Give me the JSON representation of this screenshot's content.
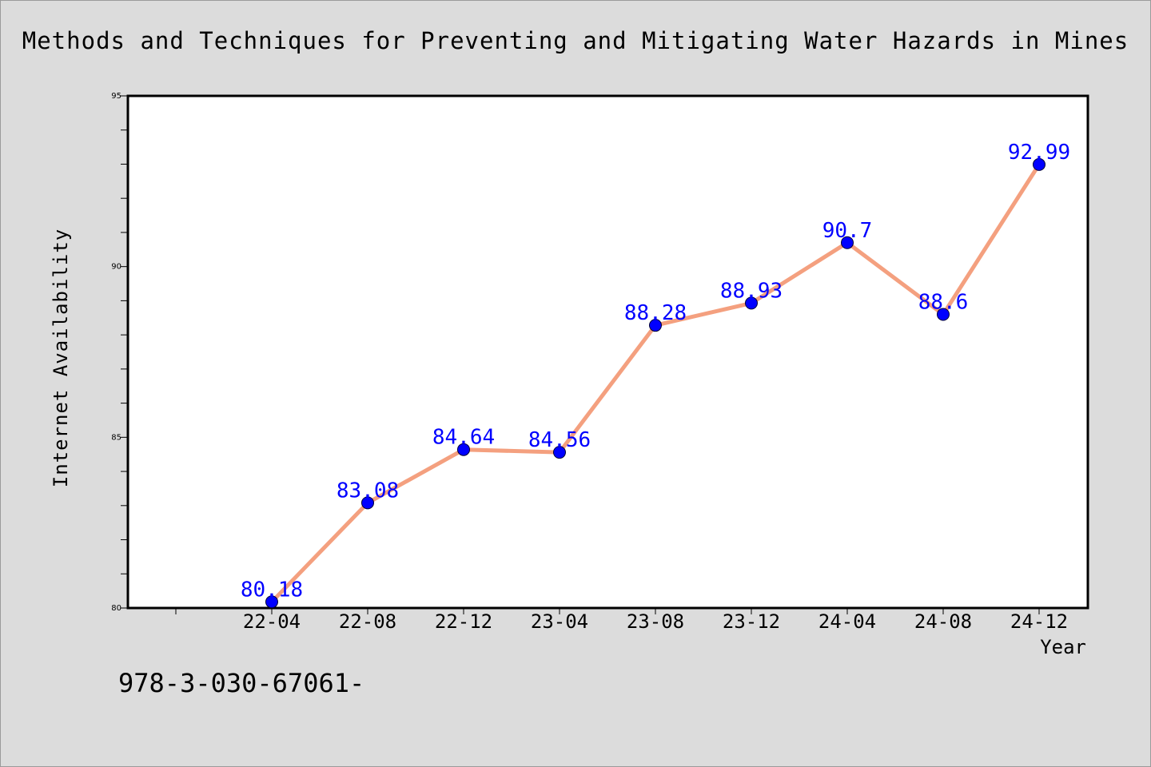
{
  "title": "Methods and Techniques for Preventing and Mitigating Water Hazards in Mines",
  "footnote": "978-3-030-67061-",
  "chart_data": {
    "type": "line",
    "title": "Methods and Techniques for Preventing and Mitigating Water Hazards in Mines",
    "xlabel": "Year",
    "ylabel": "Internet Availability",
    "categories": [
      "22-04",
      "22-08",
      "22-12",
      "23-04",
      "23-08",
      "23-12",
      "24-04",
      "24-08",
      "24-12"
    ],
    "series": [
      {
        "values": [
          80.18,
          83.08,
          84.64,
          84.56,
          88.28,
          88.93,
          90.7,
          88.6,
          92.99
        ]
      }
    ],
    "data_labels": [
      "80.18",
      "83.08",
      "84.64",
      "84.56",
      "88.28",
      "88.93",
      "90.7",
      "88.6",
      "92.99"
    ],
    "ylim": [
      80,
      95
    ],
    "y_ticks": [
      80,
      85,
      90,
      95
    ],
    "y_minor_step": 1,
    "grid": false,
    "legend": "none",
    "colors": {
      "line": "#f4a07f",
      "marker": "#0000ff",
      "label": "#0000ff",
      "background": "#dcdcdc",
      "plot_background": "#ffffff"
    }
  }
}
